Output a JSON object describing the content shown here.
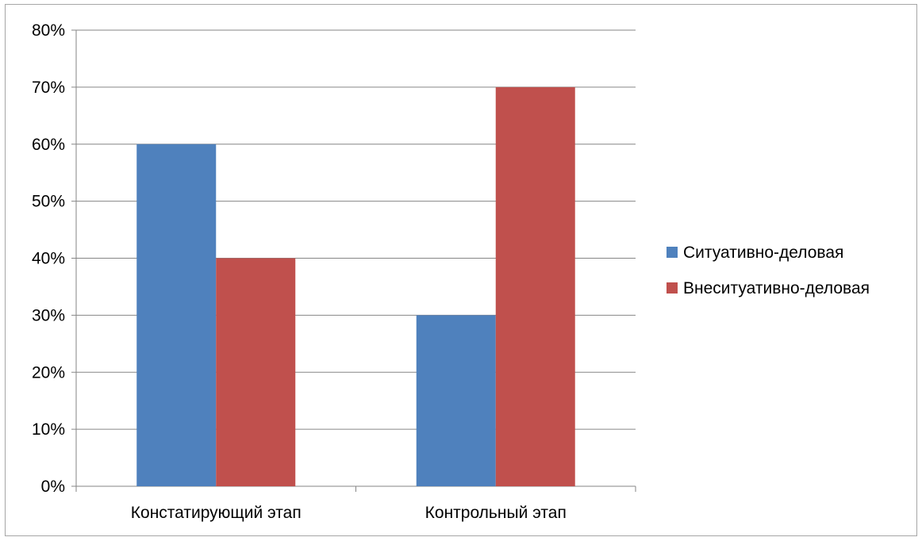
{
  "chart_data": {
    "type": "bar",
    "categories": [
      "Констатирующий этап",
      "Контрольный этап"
    ],
    "series": [
      {
        "name": "Ситуативно-деловая",
        "values": [
          60,
          30
        ],
        "color": "#4F81BD"
      },
      {
        "name": "Внеситуативно-деловая",
        "values": [
          40,
          70
        ],
        "color": "#C0504D"
      }
    ],
    "ylim": [
      0,
      80
    ],
    "yticks": [
      "0%",
      "10%",
      "20%",
      "30%",
      "40%",
      "50%",
      "60%",
      "70%",
      "80%"
    ],
    "ytick_values": [
      0,
      10,
      20,
      30,
      40,
      50,
      60,
      70,
      80
    ],
    "grid": true,
    "legend_position": "right",
    "title": "",
    "xlabel": "",
    "ylabel": ""
  }
}
